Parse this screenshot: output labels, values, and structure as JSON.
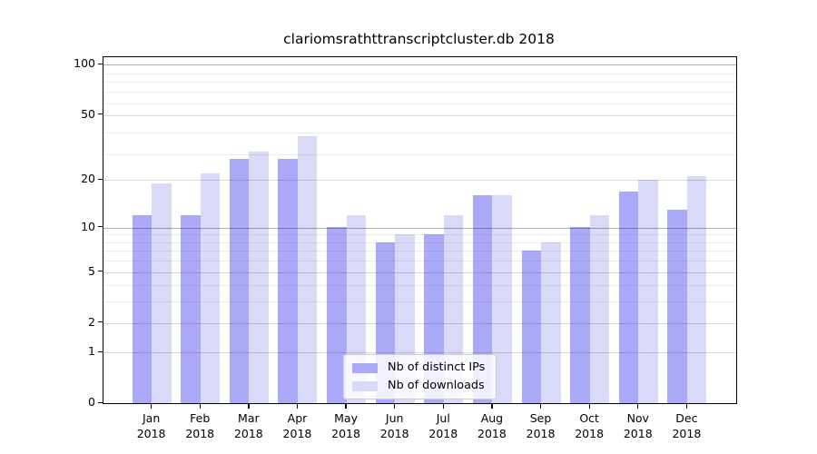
{
  "figure": {
    "title": "clariomsrathttranscriptcluster.db 2018"
  },
  "chart_data": {
    "type": "bar",
    "title": "clariomsrathttranscriptcluster.db 2018",
    "categories": [
      "Jan",
      "Feb",
      "Mar",
      "Apr",
      "May",
      "Jun",
      "Jul",
      "Aug",
      "Sep",
      "Oct",
      "Nov",
      "Dec"
    ],
    "x_sublabel": "2018",
    "series": [
      {
        "name": "Nb of distinct IPs",
        "color": "#aaaaf8",
        "values": [
          12,
          12,
          27,
          27,
          10,
          8,
          9,
          16,
          7,
          10,
          17,
          13
        ]
      },
      {
        "name": "Nb of downloads",
        "color": "#d9d9f8",
        "values": [
          19,
          22,
          30,
          37,
          12,
          9,
          12,
          16,
          8,
          12,
          20,
          21
        ]
      }
    ],
    "yscale": "log1p",
    "ylim": [
      0,
      111
    ],
    "yticks": [
      100,
      50,
      20,
      10,
      5,
      2,
      1,
      0
    ],
    "emphasized_gridlines": [
      100,
      10
    ],
    "minor_gridlines": [
      3,
      4,
      6,
      7,
      8,
      9,
      29,
      39,
      59,
      69,
      79,
      89
    ],
    "grid": "on",
    "xlabel": "",
    "ylabel": "",
    "legend_position": "lower center",
    "colors": {
      "spine": "#000000",
      "grid_minor": "#ededed",
      "grid_tick": "#d9d9d9",
      "grid_strong": "#aeaeae"
    }
  },
  "legend": {
    "items": [
      {
        "label": "Nb of distinct IPs",
        "color": "#aaaaf8"
      },
      {
        "label": "Nb of downloads",
        "color": "#d9d9f8"
      }
    ]
  }
}
